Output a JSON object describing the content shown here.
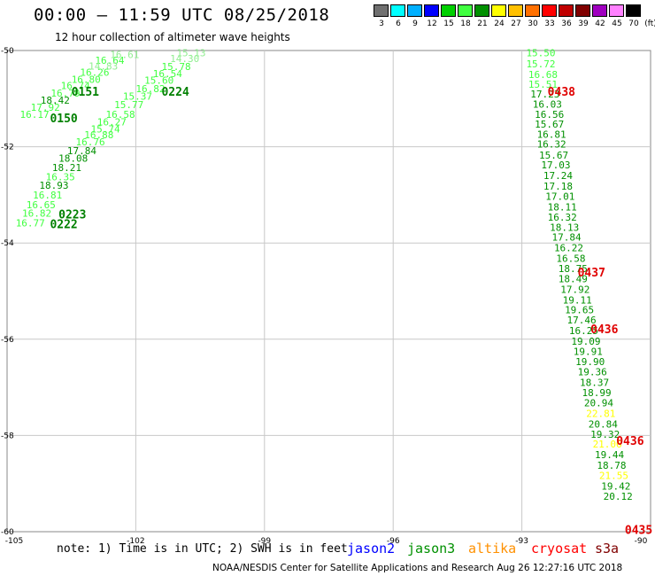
{
  "title": "00:00 – 11:59 UTC 08/25/2018",
  "subtitle": "12 hour collection of altimeter wave heights",
  "scale": {
    "colors": [
      "#707070",
      "#00ffff",
      "#00b0ff",
      "#0000ff",
      "#00d000",
      "#40ff40",
      "#009000",
      "#ffff00",
      "#ffc000",
      "#ff7000",
      "#ff0000",
      "#c00000",
      "#800000",
      "#a000c0",
      "#ff80ff",
      "#000000"
    ],
    "labels": [
      "3",
      "6",
      "9",
      "12",
      "15",
      "18",
      "21",
      "24",
      "27",
      "30",
      "33",
      "36",
      "39",
      "42",
      "45",
      "70",
      "(ft)"
    ]
  },
  "axes": {
    "lon_labels": [
      "-105",
      "-102",
      "-99",
      "-96",
      "-93",
      "-90"
    ],
    "lat_labels": [
      "-50",
      "-52",
      "-54",
      "-56",
      "-58",
      "-60"
    ]
  },
  "note": {
    "text": "note: 1) Time is in UTC; 2) SWH is in feet",
    "sat_jason2": "jason2",
    "sat_jason3": "jason3",
    "sat_altika": "altika",
    "sat_cryosat": "cryosat",
    "sat_s3a": "s3a"
  },
  "credit": "NOAA/NESDIS Center for Satellite Applications and Research   Aug 26 12:27:16 UTC 2018",
  "map_data": {
    "tracks": [
      {
        "name": "west-track-a",
        "times": [
          {
            "label": "0151",
            "lon": -103.5,
            "lat": -50.85
          },
          {
            "label": "0150",
            "lon": -104.0,
            "lat": -51.4
          }
        ],
        "obs": [
          {
            "v": "16.61",
            "lon": -102.6,
            "lat": -50.08,
            "c": "#90ee90"
          },
          {
            "v": "16.64",
            "lon": -102.95,
            "lat": -50.2,
            "c": "#40ff40"
          },
          {
            "v": "14.83",
            "lon": -103.1,
            "lat": -50.32,
            "c": "#90ee90"
          },
          {
            "v": "16.26",
            "lon": -103.3,
            "lat": -50.45,
            "c": "#40ff40"
          },
          {
            "v": "16.80",
            "lon": -103.5,
            "lat": -50.6,
            "c": "#40ff40"
          },
          {
            "v": "16.74",
            "lon": -103.75,
            "lat": -50.73,
            "c": "#40ff40"
          },
          {
            "v": "16.79",
            "lon": -103.98,
            "lat": -50.88,
            "c": "#40ff40"
          },
          {
            "v": "18.42",
            "lon": -104.22,
            "lat": -51.03,
            "c": "#009000"
          },
          {
            "v": "17.92",
            "lon": -104.45,
            "lat": -51.18,
            "c": "#40ff40"
          },
          {
            "v": "16.17",
            "lon": -104.7,
            "lat": -51.33,
            "c": "#40ff40"
          }
        ]
      },
      {
        "name": "west-track-b",
        "times": [
          {
            "label": "0224",
            "lon": -101.4,
            "lat": -50.85
          },
          {
            "label": "0223",
            "lon": -103.8,
            "lat": -53.4
          },
          {
            "label": "0222",
            "lon": -104.0,
            "lat": -53.6
          }
        ],
        "obs": [
          {
            "v": "15.13",
            "lon": -101.05,
            "lat": -50.05,
            "c": "#90ee90"
          },
          {
            "v": "14.30",
            "lon": -101.2,
            "lat": -50.17,
            "c": "#90ee90"
          },
          {
            "v": "15.78",
            "lon": -101.4,
            "lat": -50.33,
            "c": "#40ff40"
          },
          {
            "v": "16.54",
            "lon": -101.6,
            "lat": -50.48,
            "c": "#40ff40"
          },
          {
            "v": "15.60",
            "lon": -101.8,
            "lat": -50.62,
            "c": "#40ff40"
          },
          {
            "v": "16.82",
            "lon": -102.0,
            "lat": -50.79,
            "c": "#40ff40"
          },
          {
            "v": "15.37",
            "lon": -102.3,
            "lat": -50.95,
            "c": "#40ff40"
          },
          {
            "v": "15.77",
            "lon": -102.5,
            "lat": -51.12,
            "c": "#40ff40"
          },
          {
            "v": "16.58",
            "lon": -102.7,
            "lat": -51.33,
            "c": "#40ff40"
          },
          {
            "v": "16.27",
            "lon": -102.9,
            "lat": -51.48,
            "c": "#40ff40"
          },
          {
            "v": "15.74",
            "lon": -103.05,
            "lat": -51.63,
            "c": "#40ff40"
          },
          {
            "v": "16.88",
            "lon": -103.2,
            "lat": -51.75,
            "c": "#40ff40"
          },
          {
            "v": "16.76",
            "lon": -103.4,
            "lat": -51.9,
            "c": "#40ff40"
          },
          {
            "v": "17.84",
            "lon": -103.6,
            "lat": -52.08,
            "c": "#009000"
          },
          {
            "v": "18.08",
            "lon": -103.8,
            "lat": -52.24,
            "c": "#009000"
          },
          {
            "v": "18.21",
            "lon": -103.95,
            "lat": -52.43,
            "c": "#009000"
          },
          {
            "v": "16.35",
            "lon": -104.1,
            "lat": -52.62,
            "c": "#40ff40"
          },
          {
            "v": "18.93",
            "lon": -104.25,
            "lat": -52.8,
            "c": "#009000"
          },
          {
            "v": "16.81",
            "lon": -104.4,
            "lat": -53.0,
            "c": "#40ff40"
          },
          {
            "v": "16.65",
            "lon": -104.55,
            "lat": -53.2,
            "c": "#40ff40"
          },
          {
            "v": "16.82",
            "lon": -104.65,
            "lat": -53.38,
            "c": "#40ff40"
          },
          {
            "v": "16.77",
            "lon": -104.8,
            "lat": -53.58,
            "c": "#40ff40"
          }
        ]
      },
      {
        "name": "east-track",
        "times": [
          {
            "label": "0438",
            "lon": -92.4,
            "lat": -50.85
          },
          {
            "label": "0437",
            "lon": -91.7,
            "lat": -54.6
          },
          {
            "label": "0436",
            "lon": -91.4,
            "lat": -55.78
          },
          {
            "label": "0436",
            "lon": -90.8,
            "lat": -58.1
          },
          {
            "label": "0435",
            "lon": -90.6,
            "lat": -59.95
          }
        ],
        "obs": [
          {
            "v": "15.50",
            "lon": -92.9,
            "lat": -50.05,
            "c": "#40ff40"
          },
          {
            "v": "15.72",
            "lon": -92.9,
            "lat": -50.28,
            "c": "#40ff40"
          },
          {
            "v": "16.68",
            "lon": -92.85,
            "lat": -50.5,
            "c": "#40ff40"
          },
          {
            "v": "15.51",
            "lon": -92.85,
            "lat": -50.7,
            "c": "#40ff40"
          },
          {
            "v": "17.23",
            "lon": -92.8,
            "lat": -50.9,
            "c": "#009000"
          },
          {
            "v": "16.03",
            "lon": -92.75,
            "lat": -51.11,
            "c": "#009000"
          },
          {
            "v": "16.56",
            "lon": -92.7,
            "lat": -51.33,
            "c": "#009000"
          },
          {
            "v": "15.67",
            "lon": -92.7,
            "lat": -51.53,
            "c": "#009000"
          },
          {
            "v": "16.81",
            "lon": -92.65,
            "lat": -51.74,
            "c": "#009000"
          },
          {
            "v": "16.32",
            "lon": -92.65,
            "lat": -51.94,
            "c": "#009000"
          },
          {
            "v": "15.67",
            "lon": -92.6,
            "lat": -52.17,
            "c": "#009000"
          },
          {
            "v": "17.03",
            "lon": -92.55,
            "lat": -52.38,
            "c": "#009000"
          },
          {
            "v": "17.24",
            "lon": -92.5,
            "lat": -52.6,
            "c": "#009000"
          },
          {
            "v": "17.18",
            "lon": -92.5,
            "lat": -52.82,
            "c": "#009000"
          },
          {
            "v": "17.01",
            "lon": -92.45,
            "lat": -53.03,
            "c": "#009000"
          },
          {
            "v": "18.11",
            "lon": -92.4,
            "lat": -53.25,
            "c": "#009000"
          },
          {
            "v": "16.32",
            "lon": -92.4,
            "lat": -53.46,
            "c": "#009000"
          },
          {
            "v": "18.13",
            "lon": -92.35,
            "lat": -53.67,
            "c": "#009000"
          },
          {
            "v": "17.84",
            "lon": -92.3,
            "lat": -53.88,
            "c": "#009000"
          },
          {
            "v": "16.22",
            "lon": -92.25,
            "lat": -54.1,
            "c": "#009000"
          },
          {
            "v": "16.58",
            "lon": -92.2,
            "lat": -54.32,
            "c": "#009000"
          },
          {
            "v": "18.75",
            "lon": -92.15,
            "lat": -54.53,
            "c": "#009000"
          },
          {
            "v": "18.49",
            "lon": -92.15,
            "lat": -54.74,
            "c": "#009000"
          },
          {
            "v": "17.92",
            "lon": -92.1,
            "lat": -54.96,
            "c": "#009000"
          },
          {
            "v": "19.11",
            "lon": -92.05,
            "lat": -55.18,
            "c": "#009000"
          },
          {
            "v": "19.65",
            "lon": -92.0,
            "lat": -55.39,
            "c": "#009000"
          },
          {
            "v": "17.46",
            "lon": -91.95,
            "lat": -55.6,
            "c": "#009000"
          },
          {
            "v": "16.25",
            "lon": -91.9,
            "lat": -55.82,
            "c": "#009000"
          },
          {
            "v": "19.09",
            "lon": -91.85,
            "lat": -56.04,
            "c": "#009000"
          },
          {
            "v": "19.91",
            "lon": -91.8,
            "lat": -56.25,
            "c": "#009000"
          },
          {
            "v": "19.90",
            "lon": -91.75,
            "lat": -56.46,
            "c": "#009000"
          },
          {
            "v": "19.36",
            "lon": -91.7,
            "lat": -56.68,
            "c": "#009000"
          },
          {
            "v": "18.37",
            "lon": -91.65,
            "lat": -56.9,
            "c": "#009000"
          },
          {
            "v": "18.99",
            "lon": -91.6,
            "lat": -57.11,
            "c": "#009000"
          },
          {
            "v": "20.94",
            "lon": -91.55,
            "lat": -57.32,
            "c": "#009000"
          },
          {
            "v": "22.81",
            "lon": -91.5,
            "lat": -57.54,
            "c": "#ffff00"
          },
          {
            "v": "20.84",
            "lon": -91.45,
            "lat": -57.76,
            "c": "#009000"
          },
          {
            "v": "19.32",
            "lon": -91.4,
            "lat": -57.97,
            "c": "#009000"
          },
          {
            "v": "21.06",
            "lon": -91.35,
            "lat": -58.18,
            "c": "#ffff00"
          },
          {
            "v": "19.44",
            "lon": -91.3,
            "lat": -58.4,
            "c": "#009000"
          },
          {
            "v": "18.78",
            "lon": -91.25,
            "lat": -58.62,
            "c": "#009000"
          },
          {
            "v": "21.55",
            "lon": -91.2,
            "lat": -58.83,
            "c": "#ffff00"
          },
          {
            "v": "19.42",
            "lon": -91.15,
            "lat": -59.05,
            "c": "#009000"
          },
          {
            "v": "20.12",
            "lon": -91.1,
            "lat": -59.26,
            "c": "#009000"
          }
        ]
      }
    ]
  }
}
